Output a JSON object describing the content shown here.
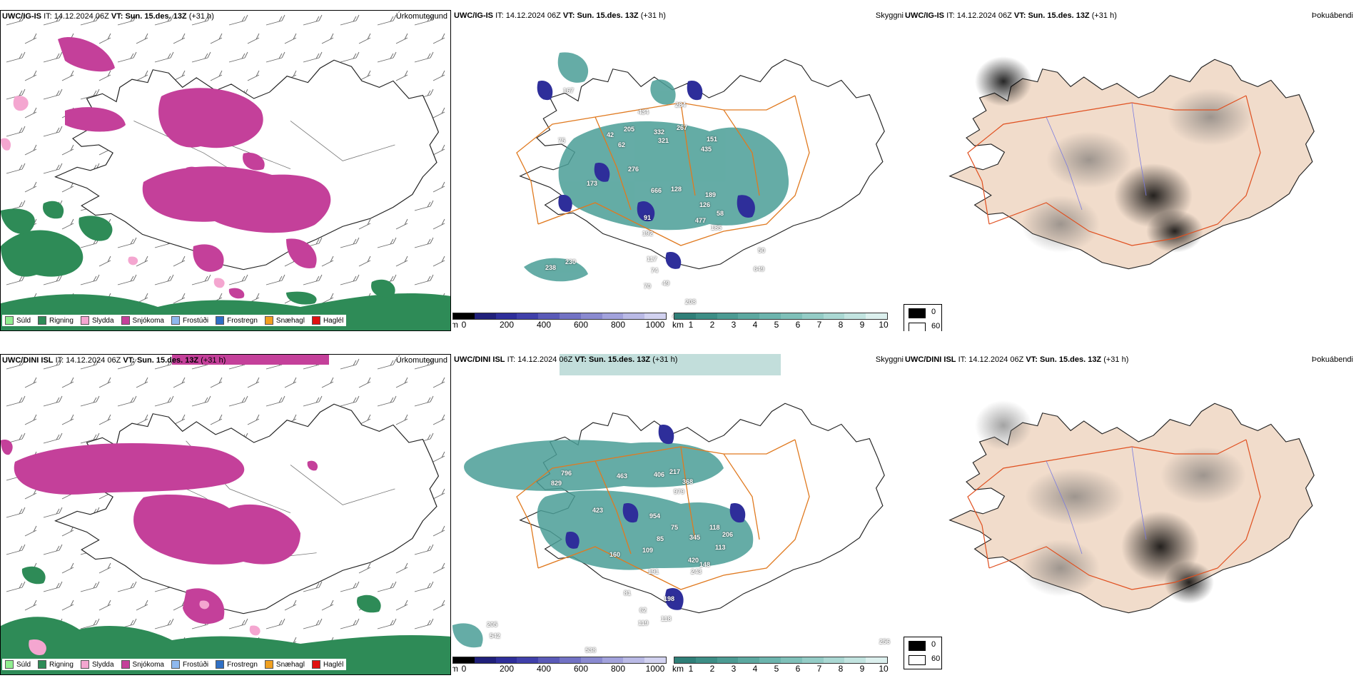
{
  "colors": {
    "precip_snow": "#c4409a",
    "precip_rain": "#2e8b57",
    "cloud_teal": "#4a9e96",
    "cloud_blue": "#2e2e9a",
    "road_orange": "#e07a20",
    "land_beige": "#f1dccb",
    "coast": "#000000"
  },
  "rows": [
    {
      "model": "UWC/IG-IS",
      "precip": {
        "model": "UWC/IG-IS",
        "it_label": "IT:",
        "it_value": "14.12.2024 06Z",
        "vt_label": "VT:",
        "vt_value": "Sun. 15.des. 13Z",
        "lead": "(+31 h)",
        "title": "Úrkomutegund"
      },
      "cloud": {
        "model": "UWC/IG-IS",
        "it_label": "IT:",
        "it_value": "14.12.2024 06Z",
        "vt_label": "VT:",
        "vt_value": "Sun. 15.des. 13Z",
        "lead": "(+31 h)",
        "title": "Skyggni",
        "labels": [
          "167",
          "434",
          "284",
          "205",
          "332",
          "267",
          "321",
          "151",
          "435",
          "42",
          "62",
          "75",
          "128",
          "276",
          "173",
          "666",
          "189",
          "126",
          "58",
          "477",
          "185",
          "91",
          "192",
          "117",
          "74",
          "70",
          "49",
          "208",
          "238",
          "230",
          "50",
          "649",
          "400"
        ]
      },
      "fog": {
        "model": "UWC/IG-IS",
        "it_label": "IT:",
        "it_value": "14.12.2024 06Z",
        "vt_label": "VT:",
        "vt_value": "Sun. 15.des. 13Z",
        "lead": "(+31 h)",
        "title": "Þokuábendi"
      }
    },
    {
      "model": "UWC/DINI ISL",
      "precip": {
        "model": "UWC/DINI ISL",
        "it_label": "IT:",
        "it_value": "14.12.2024 06Z",
        "vt_label": "VT:",
        "vt_value": "Sun. 15.des. 13Z",
        "lead": "(+31 h)",
        "title": "Úrkomutegund"
      },
      "cloud": {
        "model": "UWC/DINI ISL",
        "it_label": "IT:",
        "it_value": "14.12.2024 06Z",
        "vt_label": "VT:",
        "vt_value": "Sun. 15.des. 13Z",
        "lead": "(+31 h)",
        "title": "Skyggni",
        "labels": [
          "796",
          "463",
          "829",
          "406",
          "217",
          "368",
          "979",
          "423",
          "954",
          "75",
          "118",
          "206",
          "113",
          "345",
          "148",
          "420",
          "243",
          "160",
          "109",
          "85",
          "191",
          "81",
          "62",
          "119",
          "205",
          "542",
          "538",
          "256",
          "198",
          "118"
        ]
      },
      "fog": {
        "model": "UWC/DINI ISL",
        "it_label": "IT:",
        "it_value": "14.12.2024 06Z",
        "vt_label": "VT:",
        "vt_value": "Sun. 15.des. 13Z",
        "lead": "(+31 h)",
        "title": "Þokuábendi"
      }
    }
  ],
  "precip_legend": [
    {
      "label": "Súld",
      "color": "#90ee90"
    },
    {
      "label": "Rigning",
      "color": "#2e8b57"
    },
    {
      "label": "Slydda",
      "color": "#f4a6d0"
    },
    {
      "label": "Snjókoma",
      "color": "#c4409a"
    },
    {
      "label": "Frostúði",
      "color": "#8fb8ee"
    },
    {
      "label": "Frostregn",
      "color": "#2f6fc4"
    },
    {
      "label": "Snæhagl",
      "color": "#f0a020"
    },
    {
      "label": "Haglél",
      "color": "#e01010"
    }
  ],
  "cloudbase_bar": {
    "unit": "m",
    "ticks": [
      "0",
      "200",
      "400",
      "600",
      "800",
      "1000"
    ],
    "colors": [
      "#000000",
      "#20207a",
      "#2e2e9a",
      "#4040aa",
      "#5a5ab8",
      "#7272c4",
      "#8a8ad0",
      "#a2a2dc",
      "#babae6",
      "#d2d2f0"
    ]
  },
  "visibility_bar": {
    "unit": "km",
    "ticks": [
      "1",
      "2",
      "3",
      "4",
      "5",
      "6",
      "7",
      "8",
      "9",
      "10"
    ],
    "colors": [
      "#2f7f78",
      "#3d8e86",
      "#4c9b93",
      "#5ca8a0",
      "#6cb4ad",
      "#7fc0b9",
      "#94ccc6",
      "#aad8d3",
      "#c2e4e0",
      "#dcf0ee"
    ]
  },
  "fog_legend": {
    "values": [
      "0",
      "60"
    ]
  }
}
